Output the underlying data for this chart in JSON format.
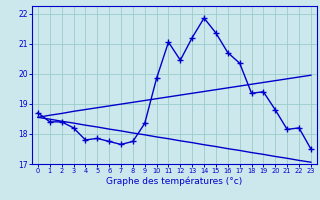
{
  "xlabel": "Graphe des températures (°c)",
  "hours": [
    0,
    1,
    2,
    3,
    4,
    5,
    6,
    7,
    8,
    9,
    10,
    11,
    12,
    13,
    14,
    15,
    16,
    17,
    18,
    19,
    20,
    21,
    22,
    23
  ],
  "temp_line": [
    18.7,
    18.4,
    18.4,
    18.2,
    17.8,
    17.85,
    17.75,
    17.65,
    17.75,
    18.35,
    19.85,
    21.05,
    20.45,
    21.2,
    21.85,
    21.35,
    20.7,
    20.35,
    19.35,
    19.4,
    18.8,
    18.15,
    18.2,
    17.5
  ],
  "trend_up": [
    18.55,
    18.62,
    18.68,
    18.75,
    18.81,
    18.87,
    18.93,
    18.99,
    19.05,
    19.11,
    19.17,
    19.23,
    19.29,
    19.35,
    19.41,
    19.47,
    19.53,
    19.59,
    19.65,
    19.71,
    19.77,
    19.83,
    19.89,
    19.95
  ],
  "trend_down": [
    18.55,
    18.49,
    18.42,
    18.36,
    18.29,
    18.23,
    18.16,
    18.1,
    18.03,
    17.97,
    17.9,
    17.84,
    17.77,
    17.71,
    17.64,
    17.58,
    17.51,
    17.45,
    17.38,
    17.32,
    17.25,
    17.19,
    17.12,
    17.06
  ],
  "line_color": "#0000cd",
  "bg_color": "#cce8ec",
  "grid_color": "#99cccc",
  "ylim": [
    17.0,
    22.25
  ],
  "yticks": [
    17,
    18,
    19,
    20,
    21,
    22
  ],
  "xticks": [
    0,
    1,
    2,
    3,
    4,
    5,
    6,
    7,
    8,
    9,
    10,
    11,
    12,
    13,
    14,
    15,
    16,
    17,
    18,
    19,
    20,
    21,
    22,
    23
  ],
  "marker": "+",
  "markersize": 4,
  "linewidth": 1.0
}
